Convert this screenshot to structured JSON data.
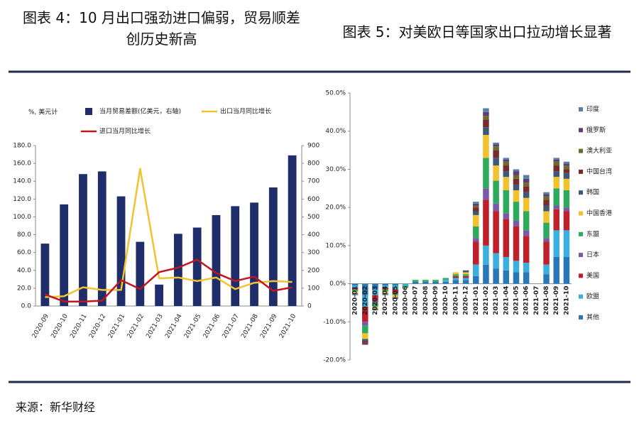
{
  "chart_data": [
    {
      "type": "combo",
      "title": "图表 4：10 月出口强劲进口偏弱，贸易顺差创历史新高",
      "y_label": "%, 美元计",
      "categories": [
        "2020-09",
        "2020-10",
        "2020-11",
        "2020-12",
        "2021-01",
        "2021-02",
        "2021-03",
        "2021-04",
        "2021-05",
        "2021-06",
        "2021-07",
        "2021-08",
        "2021-09",
        "2021-10"
      ],
      "series": [
        {
          "name": "当月贸易差额(亿美元，右轴)",
          "type": "bar",
          "axis": "y2",
          "color": "#1f2d6b",
          "values": [
            350,
            570,
            740,
            755,
            615,
            360,
            120,
            405,
            440,
            510,
            560,
            580,
            665,
            845
          ]
        },
        {
          "name": "出口当月同比增长",
          "type": "line",
          "color": "#f2c230",
          "values": [
            10,
            11,
            21,
            18,
            18,
            154,
            31,
            32,
            28,
            32,
            19,
            26,
            28,
            27
          ]
        },
        {
          "name": "进口当月同比增长",
          "type": "line",
          "color": "#c0161c",
          "values": [
            13,
            5,
            5,
            6,
            29,
            19,
            38,
            43,
            52,
            37,
            28,
            33,
            17,
            21
          ]
        }
      ],
      "ylim": [
        0,
        180
      ],
      "yticks": [
        {
          "value": 0,
          "label": "0.0"
        },
        {
          "value": 20,
          "label": "20.0"
        },
        {
          "value": 40,
          "label": "40.0"
        },
        {
          "value": 60,
          "label": "60.0"
        },
        {
          "value": 80,
          "label": "80.0"
        },
        {
          "value": 100,
          "label": "100.0"
        },
        {
          "value": 120,
          "label": "120.0"
        },
        {
          "value": 140,
          "label": "140.0"
        },
        {
          "value": 160,
          "label": "160.0"
        },
        {
          "value": 180,
          "label": "180.0"
        }
      ],
      "y2lim": [
        0,
        900
      ],
      "y2ticks": [
        0,
        100,
        200,
        300,
        400,
        500,
        600,
        700,
        800,
        900
      ]
    },
    {
      "type": "stacked_bar",
      "title": "图表 5：对美欧日等国家出口拉动增长显著",
      "categories": [
        "2020-01",
        "2020-02",
        "2020-03",
        "2020-04",
        "2020-05",
        "2020-06",
        "2020-07",
        "2020-08",
        "2020-09",
        "2020-10",
        "2020-11",
        "2020-12",
        "2021-01",
        "2021-02",
        "2021-03",
        "2021-04",
        "2021-05",
        "2021-06",
        "2021-07",
        "2021-08",
        "2021-09",
        "2021-10"
      ],
      "series": [
        {
          "name": "印度",
          "color": "#5b7fa6",
          "values": [
            -0.5,
            0,
            -0.5,
            -0.5,
            -0.5,
            0,
            0,
            0,
            0,
            0,
            0,
            0,
            0.5,
            1,
            0.5,
            0.5,
            0.5,
            1,
            null,
            0.5,
            0.5,
            0.5
          ]
        },
        {
          "name": "俄罗斯",
          "color": "#5c3d7a",
          "values": [
            0,
            -0.5,
            0,
            0,
            0,
            0,
            0,
            0,
            0,
            0,
            0,
            0,
            0.5,
            1,
            0.5,
            0.5,
            1,
            1,
            null,
            0.5,
            0.5,
            0.5
          ]
        },
        {
          "name": "澳大利亚",
          "color": "#6b6b2a",
          "values": [
            0,
            0,
            0,
            0,
            0,
            0,
            0,
            0,
            0,
            0,
            0,
            0,
            0.5,
            1,
            1,
            1,
            1,
            1,
            null,
            1,
            1,
            1
          ]
        },
        {
          "name": "中国台湾",
          "color": "#7a2a2a",
          "values": [
            0,
            -0.5,
            0,
            0,
            0,
            0,
            0,
            0,
            0,
            0,
            0,
            0,
            1,
            2,
            2,
            1.5,
            1.5,
            1.5,
            null,
            1.5,
            1.5,
            1
          ]
        },
        {
          "name": "韩国",
          "color": "#3c5a78",
          "values": [
            0,
            -0.5,
            0,
            0,
            0,
            0,
            0,
            0,
            0,
            0,
            0,
            0.5,
            1,
            2,
            2,
            1.5,
            1.5,
            1.5,
            null,
            1.5,
            1.5,
            1.5
          ]
        },
        {
          "name": "中国香港",
          "color": "#f2c12e",
          "values": [
            -0.5,
            -1.5,
            -0.5,
            -0.5,
            -0.5,
            0,
            0,
            0,
            0,
            0,
            0.5,
            0.5,
            3,
            6,
            4,
            3.5,
            3,
            3.5,
            null,
            3,
            3,
            3
          ]
        },
        {
          "name": "东盟",
          "color": "#2eaa5c",
          "values": [
            -0.5,
            -2,
            -1,
            -0.5,
            -0.5,
            -0.5,
            0.5,
            0.5,
            0.5,
            0.5,
            0.5,
            0.5,
            3,
            8,
            6,
            6,
            5,
            5,
            null,
            4,
            4.5,
            4.5
          ]
        },
        {
          "name": "日本",
          "color": "#7a5aa6",
          "values": [
            0,
            -1,
            -0.5,
            0,
            0,
            0,
            0,
            0,
            0,
            0,
            0,
            0,
            1,
            3,
            2,
            1.5,
            1.5,
            1.5,
            null,
            1,
            1,
            1
          ]
        },
        {
          "name": "美国",
          "color": "#c0202a",
          "values": [
            -0.5,
            -4,
            -1.5,
            -0.5,
            -1,
            0,
            0,
            0,
            0,
            0,
            0.5,
            0.5,
            6,
            12,
            11,
            10,
            9,
            7,
            null,
            6,
            5.5,
            5
          ]
        },
        {
          "name": "欧盟",
          "color": "#39b0e0",
          "values": [
            -0.5,
            -3,
            -1.5,
            -0.5,
            -1,
            -0.5,
            0,
            0,
            0,
            0.5,
            0.5,
            0.5,
            3,
            5,
            4,
            3.5,
            3,
            2.5,
            null,
            2.5,
            7,
            7
          ]
        },
        {
          "name": "其他",
          "color": "#2878b8",
          "values": [
            -0.5,
            -3,
            -1.5,
            -0.5,
            -0.5,
            0,
            0.5,
            0.5,
            0.5,
            0.5,
            1,
            1,
            2,
            5,
            4,
            3.5,
            3,
            3,
            null,
            2.5,
            7,
            7
          ]
        }
      ],
      "ylim": [
        -20,
        50
      ],
      "yticks": [
        {
          "value": -20,
          "label": "-20.0%"
        },
        {
          "value": -10,
          "label": "-10.0%"
        },
        {
          "value": 0,
          "label": "0.0%"
        },
        {
          "value": 10,
          "label": "10.0%"
        },
        {
          "value": 20,
          "label": "20.0%"
        },
        {
          "value": 30,
          "label": "30.0%"
        },
        {
          "value": 40,
          "label": "40.0%"
        },
        {
          "value": 50,
          "label": "50.0%"
        }
      ]
    }
  ],
  "source": "来源：新华财经"
}
